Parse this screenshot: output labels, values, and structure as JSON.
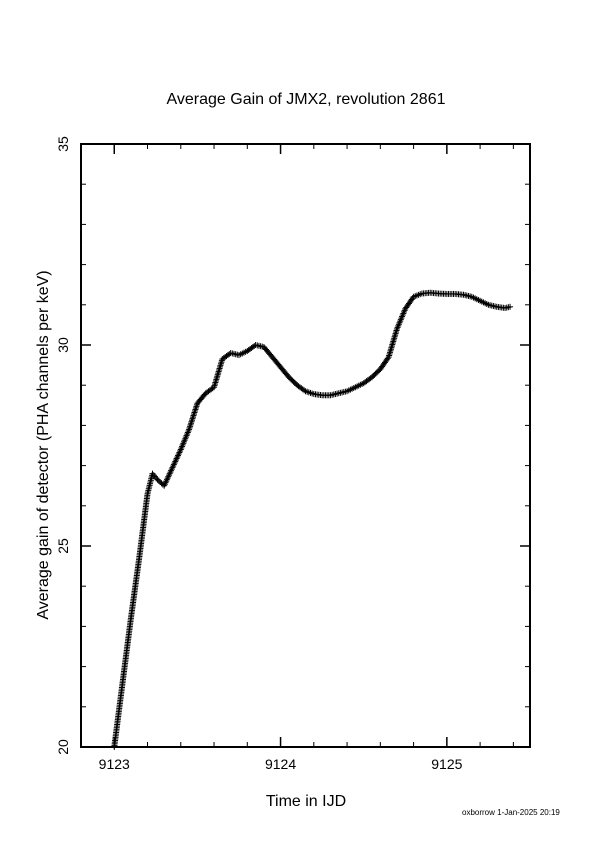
{
  "footer": "oxborrow  1-Jan-2025 20:19",
  "chart_data": {
    "type": "scatter",
    "title": "Average Gain of JMX2, revolution 2861",
    "xlabel": "Time in IJD",
    "ylabel": "Average gain of detector (PHA channels per keV)",
    "xlim": [
      9122.8,
      9125.5
    ],
    "ylim": [
      20,
      35
    ],
    "xticks": [
      9123,
      9124,
      9125
    ],
    "xminor": [
      9123.2,
      9123.4,
      9123.6,
      9123.8,
      9124.2,
      9124.4,
      9124.6,
      9124.8,
      9125.2,
      9125.4
    ],
    "yticks": [
      20,
      25,
      30,
      35
    ],
    "yminor": [
      21,
      22,
      23,
      24,
      26,
      27,
      28,
      29,
      31,
      32,
      33,
      34
    ],
    "grid": false,
    "marker": "plus",
    "series": [
      {
        "x": [
          9123.0,
          9123.05,
          9123.1,
          9123.15,
          9123.2,
          9123.23,
          9123.26,
          9123.3,
          9123.35,
          9123.4,
          9123.45,
          9123.5,
          9123.55,
          9123.6,
          9123.65,
          9123.7,
          9123.75,
          9123.8,
          9123.85,
          9123.9,
          9123.95,
          9124.0,
          9124.05,
          9124.1,
          9124.15,
          9124.2,
          9124.25,
          9124.3,
          9124.35,
          9124.4,
          9124.45,
          9124.5,
          9124.55,
          9124.6,
          9124.65,
          9124.7,
          9124.75,
          9124.8,
          9124.85,
          9124.9,
          9124.95,
          9125.0,
          9125.05,
          9125.1,
          9125.15,
          9125.2,
          9125.25,
          9125.3,
          9125.35,
          9125.38
        ],
        "y": [
          20.0,
          21.6,
          23.2,
          24.7,
          26.3,
          26.8,
          26.65,
          26.5,
          26.95,
          27.4,
          27.9,
          28.55,
          28.8,
          28.95,
          29.65,
          29.8,
          29.75,
          29.85,
          30.0,
          29.95,
          29.7,
          29.45,
          29.2,
          29.0,
          28.85,
          28.78,
          28.75,
          28.75,
          28.8,
          28.85,
          28.95,
          29.05,
          29.2,
          29.4,
          29.7,
          30.4,
          30.9,
          31.2,
          31.28,
          31.3,
          31.28,
          31.27,
          31.27,
          31.25,
          31.2,
          31.1,
          31.0,
          30.95,
          30.92,
          30.95
        ]
      }
    ]
  }
}
